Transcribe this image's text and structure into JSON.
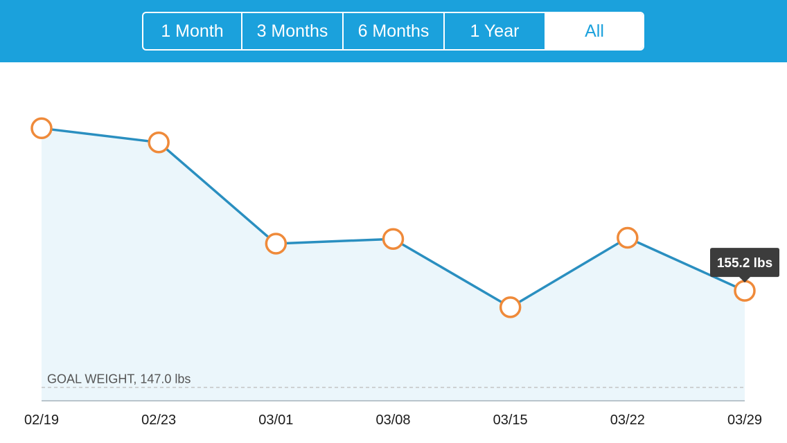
{
  "range_selector": {
    "options": [
      "1 Month",
      "3 Months",
      "6 Months",
      "1 Year",
      "All"
    ],
    "selected_index": 4
  },
  "chart_data": {
    "type": "line",
    "x": [
      "02/19",
      "02/23",
      "03/01",
      "03/08",
      "03/15",
      "03/22",
      "03/29"
    ],
    "series": [
      {
        "values": [
          169.0,
          167.8,
          159.2,
          159.6,
          153.8,
          159.7,
          155.2
        ]
      }
    ],
    "ylim": [
      145.8,
      174.6
    ],
    "goal": {
      "label": "GOAL WEIGHT, 147.0 lbs",
      "value": 147.0
    },
    "tooltip": {
      "label": "155.2 lbs",
      "index": 6
    },
    "colors": {
      "line": "#2a8fc0",
      "marker": "#ef8a3a",
      "fill": "#ebf6fb",
      "tooltip": "#3c3c3c",
      "header": "#1ba1dc"
    }
  }
}
